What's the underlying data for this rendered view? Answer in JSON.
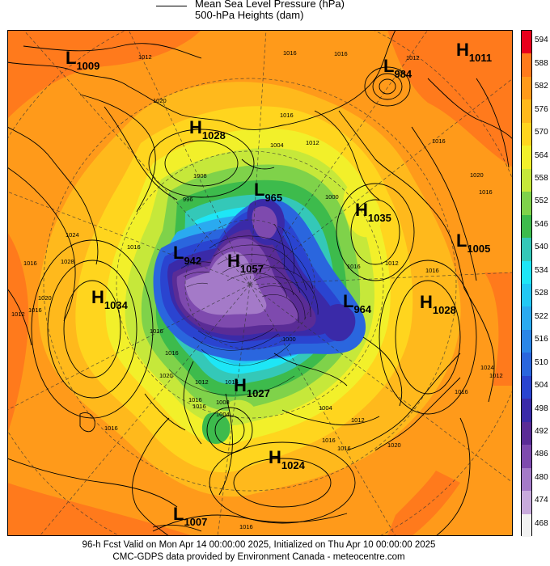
{
  "header": {
    "title_line1": "Mean Sea Level Pressure (hPa)",
    "title_line2": "500-hPa Heights (dam)"
  },
  "footer": {
    "line1": "96-h Fcst Valid on Mon Apr 14 00:00:00 2025, Initialized on Thu Apr 10 00:00:00 2025",
    "line2": "CMC-GDPS data provided by Environment Canada - meteocentre.com"
  },
  "colorbar": {
    "levels": [
      "594",
      "588",
      "582",
      "576",
      "570",
      "564",
      "558",
      "552",
      "546",
      "540",
      "534",
      "528",
      "522",
      "516",
      "510",
      "504",
      "498",
      "492",
      "486",
      "480",
      "474",
      "468"
    ],
    "colors": [
      "#e8001c",
      "#ff7a1c",
      "#ff9a1a",
      "#ffb91c",
      "#ffd51e",
      "#f2f02a",
      "#c6e83a",
      "#7fd24a",
      "#3dbb4c",
      "#34c8b8",
      "#1ee6f6",
      "#22c8f4",
      "#2aaaf0",
      "#2a86e8",
      "#2a66de",
      "#2a44d0",
      "#3a2aa8",
      "#5a2c96",
      "#7e4aae",
      "#a47ac8",
      "#c8aadc",
      "#f2f2f2"
    ]
  },
  "systems": [
    {
      "type": "L",
      "value": "1009"
    },
    {
      "type": "L",
      "value": "984"
    },
    {
      "type": "H",
      "value": "1011"
    },
    {
      "type": "H",
      "value": "1028"
    },
    {
      "type": "L",
      "value": "965"
    },
    {
      "type": "H",
      "value": "1035"
    },
    {
      "type": "L",
      "value": "1005"
    },
    {
      "type": "L",
      "value": "942"
    },
    {
      "type": "H",
      "value": "1057"
    },
    {
      "type": "H",
      "value": "1034"
    },
    {
      "type": "L",
      "value": "964"
    },
    {
      "type": "H",
      "value": "1028"
    },
    {
      "type": "H",
      "value": "1027"
    },
    {
      "type": "H",
      "value": "1024"
    },
    {
      "type": "L",
      "value": "1007"
    }
  ],
  "isobar_labels": [
    "1012",
    "1016",
    "1016",
    "1012",
    "1016",
    "1020",
    "1016",
    "1012",
    "1004",
    "1000",
    "996",
    "1008",
    "1016",
    "1024",
    "1028",
    "1016",
    "1020",
    "1016",
    "1012",
    "1016",
    "1012",
    "1016",
    "1020",
    "1016",
    "1016",
    "1016",
    "1020",
    "1016",
    "1012",
    "1016",
    "1016",
    "1008",
    "1004",
    "1016",
    "1004",
    "1000",
    "1012",
    "1016",
    "1016",
    "1020",
    "1016",
    "1024",
    "1012",
    "1016"
  ]
}
